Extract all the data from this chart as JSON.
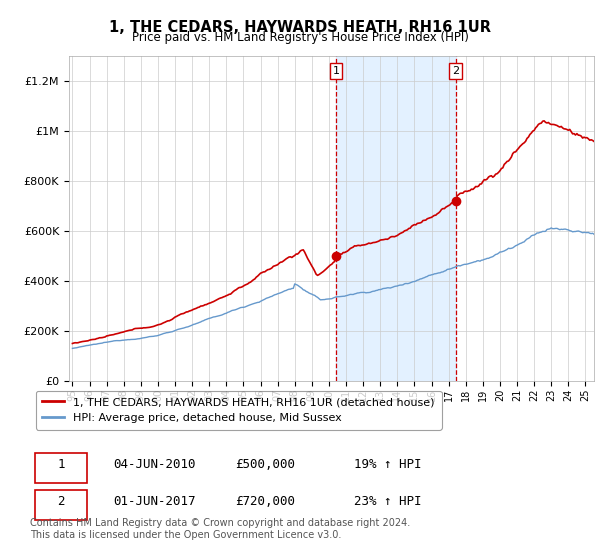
{
  "title": "1, THE CEDARS, HAYWARDS HEATH, RH16 1UR",
  "subtitle": "Price paid vs. HM Land Registry's House Price Index (HPI)",
  "ylabel_ticks": [
    "£0",
    "£200K",
    "£400K",
    "£600K",
    "£800K",
    "£1M",
    "£1.2M"
  ],
  "ytick_values": [
    0,
    200000,
    400000,
    600000,
    800000,
    1000000,
    1200000
  ],
  "ylim": [
    0,
    1300000
  ],
  "xlim_start": 1994.8,
  "xlim_end": 2025.5,
  "red_line_color": "#cc0000",
  "blue_line_color": "#6699cc",
  "highlight_fill_color": "#ddeeff",
  "dashed_line_color": "#cc0000",
  "point1_x": 2010.42,
  "point1_y": 500000,
  "point2_x": 2017.42,
  "point2_y": 720000,
  "legend_label_red": "1, THE CEDARS, HAYWARDS HEATH, RH16 1UR (detached house)",
  "legend_label_blue": "HPI: Average price, detached house, Mid Sussex",
  "table_row1": [
    "1",
    "04-JUN-2010",
    "£500,000",
    "19% ↑ HPI"
  ],
  "table_row2": [
    "2",
    "01-JUN-2017",
    "£720,000",
    "23% ↑ HPI"
  ],
  "footer": "Contains HM Land Registry data © Crown copyright and database right 2024.\nThis data is licensed under the Open Government Licence v3.0.",
  "background_color": "#ffffff",
  "grid_color": "#cccccc"
}
